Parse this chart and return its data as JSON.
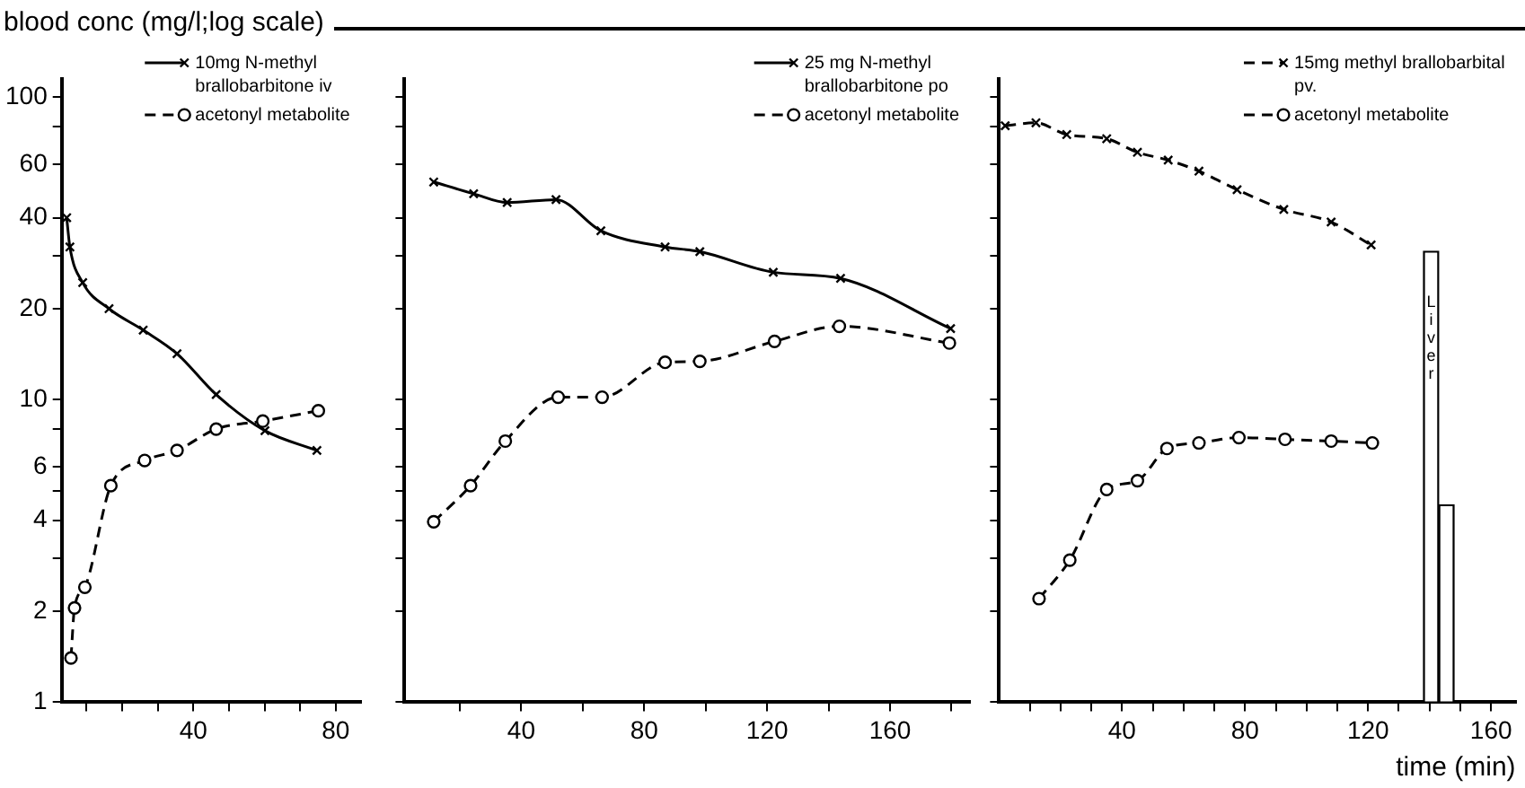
{
  "chart_data": [
    {
      "type": "line",
      "ylabel": "blood conc (mg/l;log scale)",
      "log": true,
      "legend": "top right",
      "xlim": [
        3,
        87
      ],
      "xticks": [
        {
          "value": 10,
          "label": null
        },
        {
          "value": 20,
          "label": null
        },
        {
          "value": 30,
          "label": null
        },
        40,
        {
          "value": 50,
          "label": null
        },
        {
          "value": 60,
          "label": null
        },
        {
          "value": 70,
          "label": null
        },
        80
      ],
      "ylim": [
        1,
        115
      ],
      "yticks": [
        1,
        2,
        {
          "value": 3,
          "label": null
        },
        4,
        {
          "value": 5,
          "label": null
        },
        6,
        {
          "value": 8,
          "label": null
        },
        10,
        20,
        {
          "value": 30,
          "label": null
        },
        40,
        60,
        {
          "value": 80,
          "label": null
        },
        100
      ],
      "series": [
        {
          "name": "10mg N-methyl brallobarbitone iv",
          "color": "#000000",
          "marker": "cross",
          "line_style": "solid",
          "x": [
            4.4,
            5.3,
            8.9,
            16.3,
            25.9,
            35.4,
            46.4,
            60.1,
            74.7
          ],
          "values": [
            40,
            32,
            24.4,
            20,
            17,
            14.2,
            10.4,
            7.9,
            6.8
          ]
        },
        {
          "name": "acetonyl metabolite",
          "color": "#000000",
          "marker": "circle",
          "line_style": "dashed",
          "x": [
            5.6,
            6.6,
            9.5,
            16.8,
            26.3,
            35.4,
            46.4,
            59.5,
            75.1
          ],
          "values": [
            1.4,
            2.05,
            2.4,
            5.2,
            6.3,
            6.8,
            8,
            8.5,
            9.2
          ]
        }
      ]
    },
    {
      "type": "line",
      "log": true,
      "legend": "top right",
      "tick_labels": "x",
      "xlim": [
        2,
        186
      ],
      "xticks": [
        {
          "value": 20,
          "label": null
        },
        40,
        {
          "value": 60,
          "label": null
        },
        80,
        {
          "value": 100,
          "label": null
        },
        120,
        {
          "value": 140,
          "label": null
        },
        160,
        {
          "value": 180,
          "label": null
        }
      ],
      "ylim": [
        1,
        115
      ],
      "yticks": [
        1,
        2,
        {
          "value": 3,
          "label": null
        },
        4,
        {
          "value": 5,
          "label": null
        },
        6,
        {
          "value": 8,
          "label": null
        },
        10,
        20,
        {
          "value": 30,
          "label": null
        },
        40,
        60,
        {
          "value": 80,
          "label": null
        },
        100
      ],
      "series": [
        {
          "name": "25 mg N-methyl brallobarbitone po",
          "color": "#000000",
          "marker": "cross",
          "line_style": "solid",
          "x": [
            11.5,
            24.5,
            35.4,
            51.3,
            65.9,
            86.8,
            98.1,
            122,
            143.9,
            179.7
          ],
          "values": [
            52.5,
            48,
            44.9,
            45.9,
            36.2,
            32,
            30.9,
            26.4,
            25.2,
            17.2
          ]
        },
        {
          "name": "acetonyl metabolite",
          "color": "#000000",
          "marker": "circle",
          "line_style": "dashed",
          "x": [
            11.5,
            23.5,
            34.8,
            52,
            66.3,
            86.8,
            98.1,
            122.4,
            143.5,
            179.3
          ],
          "values": [
            3.95,
            5.2,
            7.3,
            10.2,
            10.2,
            13.3,
            13.4,
            15.6,
            17.5,
            15.4
          ]
        }
      ]
    },
    {
      "type": "line",
      "log": true,
      "legend": "top right",
      "tick_labels": "x",
      "xlabel": "time (min)",
      "xlim": [
        0,
        168
      ],
      "xticks": [
        {
          "value": 10,
          "label": null
        },
        {
          "value": 20,
          "label": null
        },
        {
          "value": 30,
          "label": null
        },
        40,
        {
          "value": 50,
          "label": null
        },
        {
          "value": 60,
          "label": null
        },
        {
          "value": 70,
          "label": null
        },
        80,
        {
          "value": 90,
          "label": null
        },
        {
          "value": 100,
          "label": null
        },
        {
          "value": 110,
          "label": null
        },
        120,
        {
          "value": 130,
          "label": null
        },
        {
          "value": 140,
          "label": null
        },
        {
          "value": 150,
          "label": null
        },
        160
      ],
      "ylim": [
        1,
        115
      ],
      "yticks": [
        1,
        2,
        {
          "value": 3,
          "label": null
        },
        4,
        {
          "value": 5,
          "label": null
        },
        6,
        {
          "value": 8,
          "label": null
        },
        10,
        20,
        {
          "value": 30,
          "label": null
        },
        40,
        60,
        {
          "value": 80,
          "label": null
        },
        100
      ],
      "annotations": [
        {
          "text": "Liver",
          "x": 140.5,
          "y": 16
        }
      ],
      "series": [
        {
          "name": "15mg methyl brallobarbital pv.",
          "color": "#000000",
          "marker": "cross",
          "line_style": "dashed",
          "x": [
            2,
            12,
            22,
            35,
            45,
            55,
            65,
            77.4,
            92.6,
            108,
            121
          ],
          "values": [
            80.5,
            82.4,
            75.3,
            73,
            65.8,
            62,
            57,
            49.5,
            42.6,
            38.7,
            32.5
          ]
        },
        {
          "name": "acetonyl metabolite",
          "color": "#000000",
          "marker": "circle",
          "line_style": "dashed",
          "x": [
            13,
            23,
            35,
            45,
            54.6,
            65,
            78,
            93,
            108,
            121.4
          ],
          "values": [
            2.2,
            2.95,
            5.05,
            5.4,
            6.9,
            7.2,
            7.5,
            7.4,
            7.3,
            7.2
          ]
        },
        {
          "type": "bar",
          "color": "#ffffff",
          "x": [
            140.5,
            145.5
          ],
          "values": [
            31,
            4.5
          ]
        }
      ]
    }
  ]
}
